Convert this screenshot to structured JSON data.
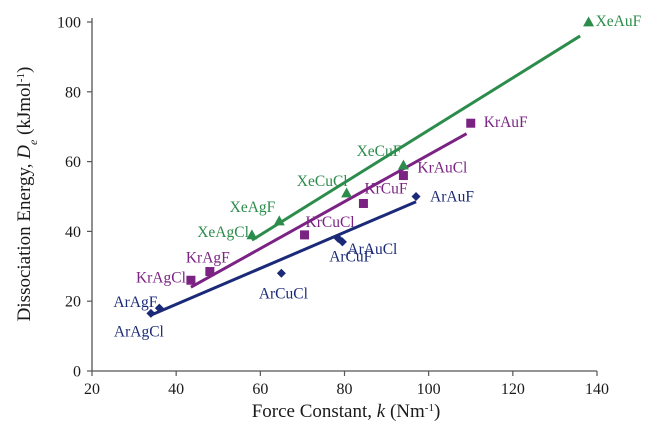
{
  "chart_data": {
    "type": "scatter",
    "title": "",
    "xlabel": "Force Constant, k (Nm⁻¹)",
    "xlabel_parts": [
      "Force Constant, ",
      "k",
      " (Nm",
      "-1",
      ")"
    ],
    "ylabel": "Dissociation Energy, De (kJmol⁻¹)",
    "ylabel_parts": [
      "Dissociation Energy, ",
      "D",
      "e",
      " (kJmol",
      "-1",
      ")"
    ],
    "xlim": [
      20,
      140
    ],
    "ylim": [
      0,
      100
    ],
    "xticks": [
      20,
      40,
      60,
      80,
      100,
      120,
      140
    ],
    "yticks": [
      0,
      20,
      40,
      60,
      80,
      100
    ],
    "grid": false,
    "legend": "none",
    "series": [
      {
        "color": "#2c8c4c",
        "marker": "triangle",
        "points": [
          {
            "label": "XeAgCl",
            "x": 58,
            "y": 39
          },
          {
            "label": "XeAgF",
            "x": 64.5,
            "y": 43
          },
          {
            "label": "XeCuCl",
            "x": 80.5,
            "y": 51
          },
          {
            "label": "XeCuF",
            "x": 94,
            "y": 59
          },
          {
            "label": "XeAuF",
            "x": 138,
            "y": 100
          }
        ],
        "trend": {
          "x": [
            58,
            136
          ],
          "y": [
            37.5,
            96
          ]
        }
      },
      {
        "color": "#7b2383",
        "marker": "square",
        "points": [
          {
            "label": "KrAgCl",
            "x": 43.5,
            "y": 26
          },
          {
            "label": "KrAgF",
            "x": 48,
            "y": 28.5
          },
          {
            "label": "KrCuCl",
            "x": 70.5,
            "y": 39
          },
          {
            "label": "KrCuF",
            "x": 84.5,
            "y": 48
          },
          {
            "label": "KrAuCl",
            "x": 94,
            "y": 56
          },
          {
            "label": "KrAuF",
            "x": 110,
            "y": 71
          }
        ],
        "trend": {
          "x": [
            43.5,
            109
          ],
          "y": [
            24,
            68
          ]
        }
      },
      {
        "color": "#1b2a78",
        "marker": "diamond",
        "points": [
          {
            "label": "ArAgCl",
            "x": 34,
            "y": 16.5
          },
          {
            "label": "ArAgF",
            "x": 36,
            "y": 18
          },
          {
            "label": "ArCuCl",
            "x": 65,
            "y": 28
          },
          {
            "label": "ArCuF",
            "x": 78.5,
            "y": 38
          },
          {
            "label": "ArAuCl",
            "x": 79.5,
            "y": 37
          },
          {
            "label": "ArAuF",
            "x": 97,
            "y": 50
          }
        ],
        "trend": {
          "x": [
            34,
            97
          ],
          "y": [
            16,
            48.5
          ]
        }
      }
    ]
  }
}
